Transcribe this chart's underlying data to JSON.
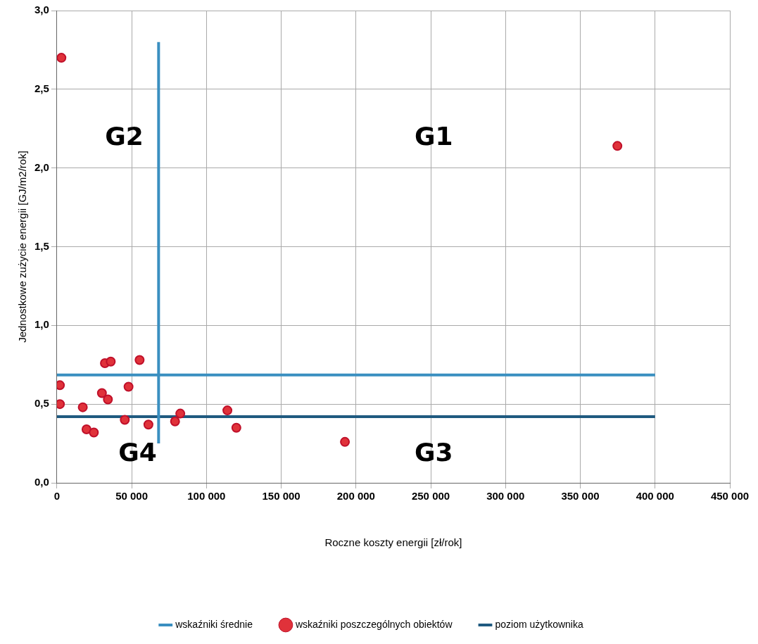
{
  "chart_data": {
    "type": "scatter",
    "xlabel": "Roczne koszty energii [zł/rok]",
    "ylabel": "Jednostkowe zużycie energii [GJ/m2/rok]",
    "xlim": [
      0,
      450000
    ],
    "ylim": [
      0,
      3
    ],
    "xticks": [
      0,
      {
        "value": 50000,
        "label": "50 000"
      },
      {
        "value": 100000,
        "label": "100 000"
      },
      {
        "value": 150000,
        "label": "150 000"
      },
      {
        "value": 200000,
        "label": "200 000"
      },
      {
        "value": 250000,
        "label": "250 000"
      },
      {
        "value": 300000,
        "label": "300 000"
      },
      {
        "value": 350000,
        "label": "350 000"
      },
      {
        "value": 400000,
        "label": "400 000"
      },
      {
        "value": 450000,
        "label": "450 000"
      }
    ],
    "yticks": [
      {
        "value": 0,
        "label": "0,0"
      },
      {
        "value": 0.5,
        "label": "0,5"
      },
      {
        "value": 1,
        "label": "1,0"
      },
      {
        "value": 1.5,
        "label": "1,5"
      },
      {
        "value": 2,
        "label": "2,0"
      },
      {
        "value": 2.5,
        "label": "2,5"
      },
      {
        "value": 3,
        "label": "3,0"
      }
    ],
    "grid": true,
    "legend": "bottom",
    "marker": "circle",
    "series": [
      {
        "name": "wskaźniki średnie",
        "type": "line",
        "color": "#3a8fc0",
        "marker": "none",
        "x": [
          68000,
          68000
        ],
        "values": [
          0.25,
          2.8
        ]
      },
      {
        "type": "line",
        "color": "#3a8fc0",
        "marker": "none",
        "x": [
          0,
          400000
        ],
        "values": [
          0.685,
          0.685
        ]
      },
      {
        "name": "wskaźniki poszczególnych obiektów",
        "color": "#e0323a",
        "x": [
          3000,
          374800,
          2000,
          2000,
          17300,
          19800,
          24700,
          32100,
          36000,
          55300,
          47900,
          30100,
          34100,
          45400,
          61200,
          79000,
          82500,
          114000,
          120000,
          192600
        ],
        "values": [
          2.7,
          2.14,
          0.62,
          0.5,
          0.48,
          0.34,
          0.32,
          0.76,
          0.77,
          0.78,
          0.61,
          0.57,
          0.53,
          0.4,
          0.37,
          0.39,
          0.44,
          0.46,
          0.35,
          0.26
        ]
      },
      {
        "name": "poziom użytkownika",
        "type": "line",
        "color": "#1f5a80",
        "marker": "none",
        "x": [
          0,
          400000
        ],
        "values": [
          0.42,
          0.42
        ]
      }
    ],
    "annotations": [
      "G2",
      "G1",
      "G4",
      "G3"
    ]
  }
}
